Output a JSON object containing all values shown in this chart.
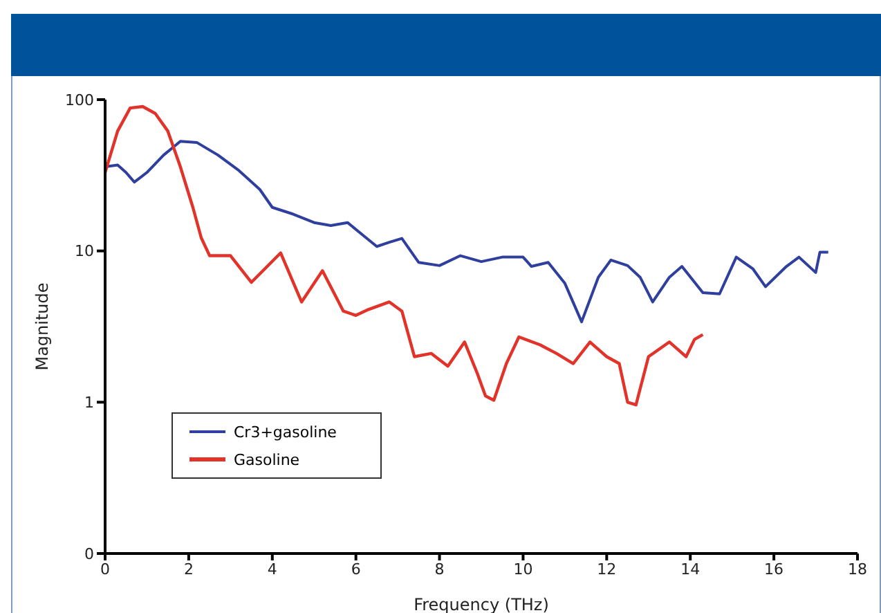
{
  "chart_data": {
    "type": "line",
    "xlabel": "Frequency (THz)",
    "ylabel": "Magnitude",
    "log": "y",
    "legend": "bottom left",
    "marker": "none",
    "line_style": "solid",
    "xlim": [
      0,
      18
    ],
    "xticks": [
      0,
      2,
      4,
      6,
      8,
      10,
      12,
      14,
      16,
      18
    ],
    "ylim": [
      0.1,
      100
    ],
    "yticks": [
      {
        "value": 0.1,
        "label": "0"
      },
      1,
      10,
      100
    ],
    "series": [
      {
        "name": "Cr3+gasoline",
        "color": "#2e3f9e",
        "x": [
          0,
          0.3,
          0.5,
          0.7,
          1.0,
          1.4,
          1.8,
          2.2,
          2.7,
          3.2,
          3.7,
          4.0,
          4.5,
          5.0,
          5.4,
          5.8,
          6.2,
          6.5,
          6.8,
          7.1,
          7.5,
          8.0,
          8.5,
          9.0,
          9.5,
          10.0,
          10.2,
          10.6,
          11.0,
          11.4,
          11.8,
          12.1,
          12.5,
          12.8,
          13.1,
          13.5,
          13.8,
          14.3,
          14.7,
          15.1,
          15.5,
          15.8,
          16.3,
          16.6,
          17.0,
          17.1,
          17.3
        ],
        "values": [
          36,
          37,
          33,
          28.5,
          33,
          43,
          53,
          52,
          43,
          34,
          25.5,
          19.4,
          17.5,
          15.4,
          14.7,
          15.4,
          12.5,
          10.7,
          11.4,
          12.1,
          8.4,
          8,
          9.3,
          8.5,
          9.1,
          9.1,
          7.9,
          8.4,
          6.1,
          3.4,
          6.7,
          8.7,
          8,
          6.7,
          4.6,
          6.7,
          7.9,
          5.3,
          5.2,
          9.1,
          7.6,
          5.8,
          7.9,
          9.1,
          7.2,
          9.8,
          9.8
        ]
      },
      {
        "name": "Gasoline",
        "color": "#e2332a",
        "x": [
          0,
          0.3,
          0.6,
          0.9,
          1.2,
          1.5,
          1.8,
          2.1,
          2.3,
          2.5,
          3.0,
          3.5,
          4.2,
          4.7,
          5.2,
          5.7,
          6.0,
          6.3,
          6.8,
          7.1,
          7.4,
          7.8,
          8.2,
          8.6,
          8.9,
          9.1,
          9.3,
          9.6,
          9.9,
          10.4,
          10.8,
          11.2,
          11.6,
          12.0,
          12.3,
          12.5,
          12.7,
          13.0,
          13.5,
          13.9,
          14.1,
          14.3
        ],
        "values": [
          33,
          62,
          88,
          90,
          81,
          62,
          36,
          19.4,
          12.2,
          9.3,
          9.3,
          6.2,
          9.7,
          4.6,
          7.4,
          4.0,
          3.75,
          4.1,
          4.6,
          4.0,
          2.0,
          2.1,
          1.73,
          2.5,
          1.56,
          1.1,
          1.03,
          1.8,
          2.7,
          2.4,
          2.1,
          1.8,
          2.5,
          2.0,
          1.8,
          1.0,
          0.96,
          2.0,
          2.5,
          2.0,
          2.6,
          2.8
        ]
      }
    ]
  }
}
